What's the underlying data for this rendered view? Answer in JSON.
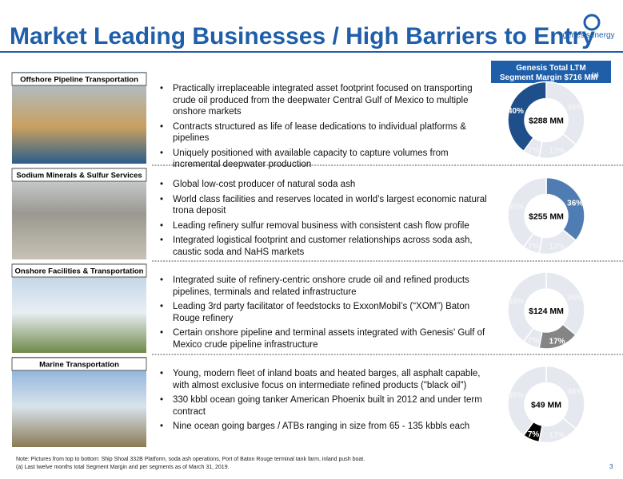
{
  "header": {
    "title": "Market Leading Businesses / High Barriers to Entry",
    "logo": "genesisenergy"
  },
  "donut_header": {
    "line1": "Genesis Total LTM",
    "line2": "Segment Margin $716 MM",
    "sup": "(a)"
  },
  "sections": [
    {
      "label": "Offshore Pipeline Transportation",
      "bullets": [
        "Practically irreplaceable integrated asset footprint focused on transporting crude oil produced from the deepwater Central Gulf of Mexico to multiple onshore markets",
        "Contracts structured as life of lease dedications to individual platforms & pipelines",
        "Uniquely positioned with available capacity to capture volumes from incremental deepwater production"
      ],
      "donut": {
        "center": "$288 MM",
        "highlight": 3,
        "color": "#1f4f8a"
      }
    },
    {
      "label": "Sodium Minerals & Sulfur Services",
      "bullets": [
        "Global low-cost producer of natural soda ash",
        "World class facilities and reserves located in world’s largest economic natural trona deposit",
        "Leading refinery sulfur removal business with consistent cash flow profile",
        "Integrated logistical footprint and customer relationships across soda ash, caustic soda and NaHS markets"
      ],
      "donut": {
        "center": "$255 MM",
        "highlight": 0,
        "color": "#4f7db3"
      }
    },
    {
      "label": "Onshore Facilities & Transportation",
      "bullets": [
        "Integrated suite of refinery-centric onshore crude oil and refined products pipelines, terminals and related infrastructure",
        "Leading 3rd party facilitator of feedstocks to ExxonMobil’s (“XOM”) Baton Rouge refinery",
        "Certain onshore pipeline and terminal assets integrated with Genesis' Gulf of Mexico crude pipeline infrastructure"
      ],
      "donut": {
        "center": "$124 MM",
        "highlight": 1,
        "color": "#858585"
      }
    },
    {
      "label": "Marine Transportation",
      "bullets": [
        "Young, modern fleet of inland boats and heated barges, all asphalt capable, with almost exclusive focus on intermediate refined products (\"black oil\")",
        "330 kbbl ocean going tanker American Phoenix built in 2012 and under term contract",
        "Nine ocean going barges / ATBs ranging in size from 65 - 135 kbbls each"
      ],
      "donut": {
        "center": "$49 MM",
        "highlight": 2,
        "color": "#000000"
      }
    }
  ],
  "slices": [
    {
      "value": 36,
      "label": "36%"
    },
    {
      "value": 17,
      "label": "17%"
    },
    {
      "value": 7,
      "label": "7%"
    },
    {
      "value": 40,
      "label": "40%"
    }
  ],
  "footnotes": [
    "Note: Pictures from top to bottom: Ship Shoal 332B Platform, soda ash operations, Port of Baton Rouge terminal tank farm, inland push boat.",
    "(a)    Last twelve months total Segment Margin and per segments as of March 31, 2019."
  ],
  "page_number": "3"
}
